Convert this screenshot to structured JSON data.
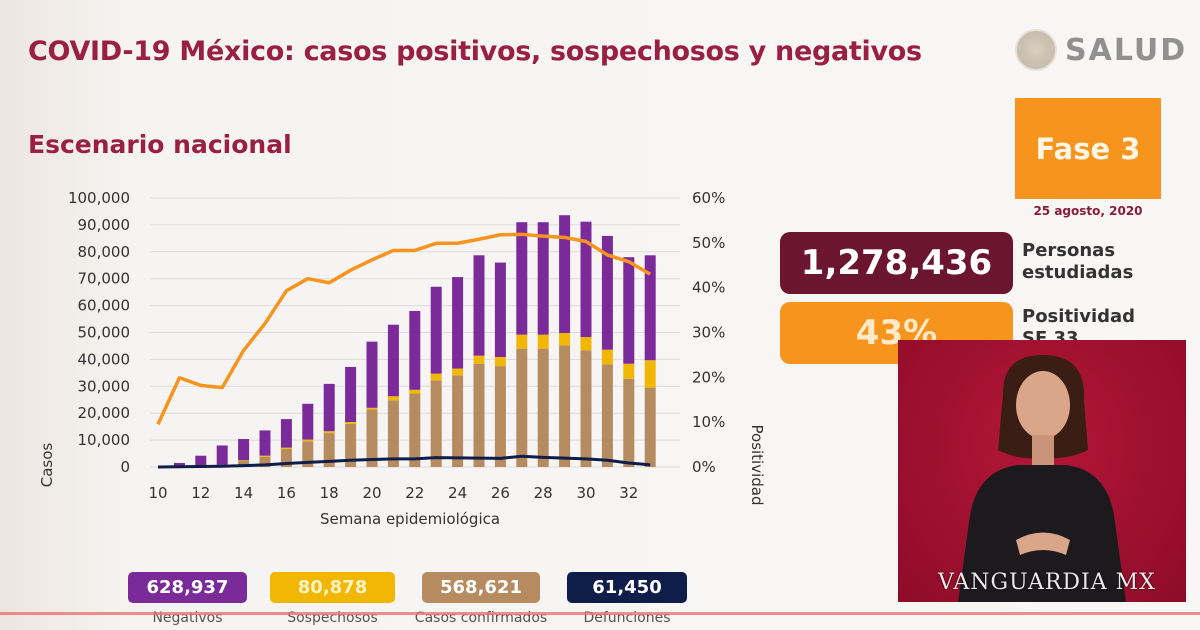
{
  "header": {
    "title": "COVID-19 México: casos positivos, sospechosos y negativos",
    "subtitle": "Escenario nacional"
  },
  "logo": {
    "text": "SALUD"
  },
  "phase": {
    "label": "Fase 3",
    "date": "25 agosto, 2020"
  },
  "kpis": [
    {
      "value": "1,278,436",
      "label_line1": "Personas",
      "label_line2": "estudiadas"
    },
    {
      "value": "43%",
      "label_line1": "Positividad",
      "label_line2": "SE 33"
    }
  ],
  "legend": [
    {
      "value": "628,937",
      "label": "Negativos",
      "color": "#7b2a9a"
    },
    {
      "value": "80,878",
      "label": "Sospechosos",
      "color": "#f2b705"
    },
    {
      "value": "568,621",
      "label": "Casos confirmados",
      "color": "#b58b5f"
    },
    {
      "value": "61,450",
      "label": "Defunciones",
      "color": "#0e1d4a"
    }
  ],
  "watermark": "VANGUARDIA MX",
  "chart_data": {
    "type": "bar",
    "xlabel": "Semana epidemiológica",
    "ylabel": "Casos",
    "y2label": "Positividad",
    "ylim": [
      0,
      100000
    ],
    "y2lim": [
      0,
      60
    ],
    "yticks": [
      "0",
      "10,000",
      "20,000",
      "30,000",
      "40,000",
      "50,000",
      "60,000",
      "70,000",
      "80,000",
      "90,000",
      "100,000"
    ],
    "y2ticks": [
      "0%",
      "10%",
      "20%",
      "30%",
      "40%",
      "50%",
      "60%"
    ],
    "xticks": [
      "10",
      "12",
      "14",
      "16",
      "18",
      "20",
      "22",
      "24",
      "26",
      "28",
      "30",
      "32"
    ],
    "weeks": [
      10,
      11,
      12,
      13,
      14,
      15,
      16,
      17,
      18,
      19,
      20,
      21,
      22,
      23,
      24,
      25,
      26,
      27,
      28,
      29,
      30,
      31,
      32,
      33
    ],
    "series": [
      {
        "name": "Casos confirmados",
        "kind": "bar",
        "color": "#b58b5f",
        "values": [
          0,
          200,
          400,
          700,
          2200,
          3800,
          6700,
          9600,
          12600,
          16000,
          21400,
          24800,
          27300,
          32200,
          34100,
          38400,
          37500,
          44000,
          44000,
          45200,
          43400,
          38200,
          32800,
          29500
        ]
      },
      {
        "name": "Sospechosos",
        "kind": "bar",
        "color": "#f2b705",
        "values": [
          0,
          100,
          100,
          100,
          300,
          400,
          500,
          600,
          700,
          700,
          600,
          1500,
          1400,
          2500,
          2500,
          3000,
          3400,
          5200,
          5200,
          4600,
          4900,
          5400,
          5600,
          10200
        ]
      },
      {
        "name": "Negativos",
        "kind": "bar",
        "color": "#7b2a9a",
        "values": [
          0,
          1200,
          3700,
          7200,
          7900,
          9400,
          10600,
          13300,
          17600,
          20500,
          24600,
          26600,
          29300,
          32300,
          34000,
          37300,
          35100,
          41800,
          41800,
          43800,
          42900,
          42300,
          39600,
          39000
        ]
      },
      {
        "name": "Defunciones",
        "kind": "line",
        "axis": "left",
        "color": "#0e1d4a",
        "values": [
          0,
          100,
          200,
          300,
          500,
          800,
          1300,
          1700,
          2100,
          2500,
          2800,
          3000,
          3000,
          3500,
          3400,
          3300,
          3200,
          4000,
          3600,
          3300,
          3000,
          2500,
          1500,
          800
        ]
      },
      {
        "name": "Positividad",
        "kind": "line",
        "axis": "right",
        "color": "#f7941d",
        "values": [
          9.5,
          19.9,
          18.2,
          17.7,
          26,
          32,
          39.3,
          42,
          41.1,
          43.9,
          46.2,
          48.3,
          48.3,
          49.9,
          49.9,
          50.8,
          51.8,
          51.9,
          51.5,
          51.2,
          50.3,
          47.3,
          45.8,
          43
        ]
      }
    ]
  }
}
